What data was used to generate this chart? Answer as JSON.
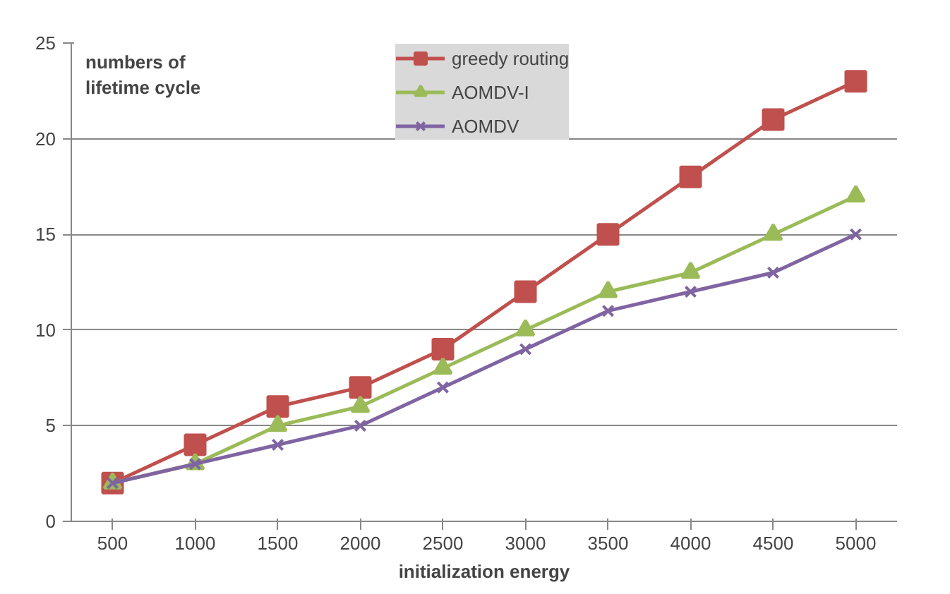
{
  "chart_data": {
    "type": "line",
    "ylabel": "numbers of lifetime cycle",
    "xlabel": "initialization energy",
    "categories": [
      "500",
      "1000",
      "1500",
      "2000",
      "2500",
      "3000",
      "3500",
      "4000",
      "4500",
      "5000"
    ],
    "series": [
      {
        "name": "greedy routing",
        "color": "#c0504d",
        "marker": "square",
        "values": [
          2,
          4,
          6,
          7,
          9,
          12,
          15,
          18,
          21,
          23
        ]
      },
      {
        "name": "AOMDV-I",
        "color": "#9bbb59",
        "marker": "triangle",
        "values": [
          2,
          3,
          5,
          6,
          8,
          10,
          12,
          13,
          15,
          17
        ]
      },
      {
        "name": "AOMDV",
        "color": "#8064a2",
        "marker": "cross",
        "values": [
          2,
          3,
          4,
          5,
          7,
          9,
          11,
          12,
          13,
          15
        ]
      }
    ],
    "ylim": [
      0,
      25
    ],
    "yticks": [
      0,
      5,
      10,
      15,
      20,
      25
    ],
    "grid": "y",
    "legend": "top",
    "line_style": "solid"
  }
}
